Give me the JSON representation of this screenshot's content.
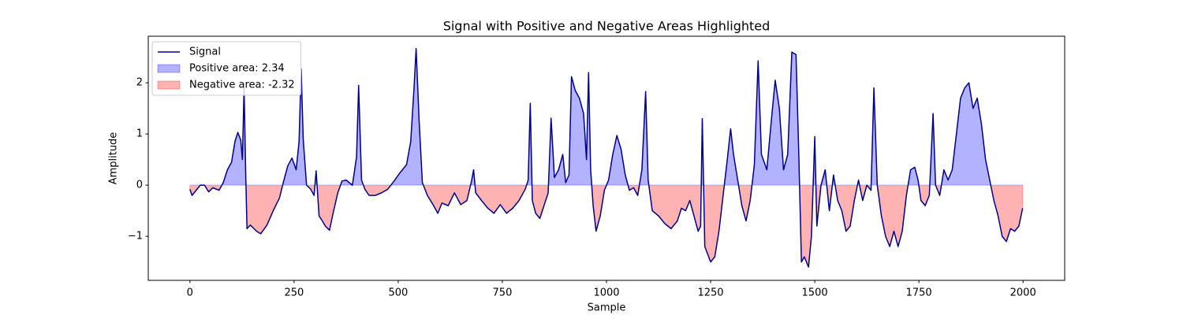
{
  "chart_data": {
    "type": "line",
    "title": "Signal with Positive and Negative Areas Highlighted",
    "x_label": "Sample",
    "y_label": "Amplitude",
    "xlim": [
      -100,
      2100
    ],
    "ylim": [
      -1.86,
      2.91
    ],
    "xticks": [
      0,
      250,
      500,
      750,
      1000,
      1250,
      1500,
      1750,
      2000
    ],
    "yticks": [
      {
        "value": -1,
        "label": "−1"
      },
      0,
      1,
      2
    ],
    "grid": false,
    "legend": "upper left",
    "fill_baseline": 0,
    "series": [
      {
        "name": "Signal",
        "color": "#00008b",
        "x": [
          0,
          5,
          15,
          25,
          35,
          45,
          55,
          70,
          80,
          90,
          100,
          108,
          115,
          122,
          126,
          130,
          134,
          137,
          145,
          160,
          170,
          185,
          200,
          215,
          225,
          235,
          245,
          255,
          262,
          267,
          272,
          280,
          290,
          298,
          303,
          310,
          318,
          325,
          335,
          345,
          355,
          365,
          375,
          390,
          400,
          405,
          412,
          420,
          430,
          445,
          460,
          475,
          490,
          505,
          520,
          530,
          538,
          543,
          550,
          558,
          570,
          585,
          595,
          605,
          620,
          635,
          650,
          665,
          676,
          681,
          686,
          700,
          715,
          730,
          745,
          760,
          775,
          790,
          805,
          812,
          817,
          822,
          830,
          840,
          850,
          860,
          867,
          875,
          885,
          895,
          902,
          910,
          916,
          925,
          935,
          945,
          952,
          957,
          962,
          968,
          975,
          985,
          995,
          1005,
          1015,
          1025,
          1035,
          1045,
          1055,
          1065,
          1075,
          1085,
          1094,
          1100,
          1110,
          1125,
          1140,
          1155,
          1170,
          1180,
          1190,
          1200,
          1210,
          1220,
          1226,
          1230,
          1236,
          1250,
          1260,
          1270,
          1280,
          1290,
          1298,
          1305,
          1315,
          1325,
          1335,
          1345,
          1355,
          1364,
          1372,
          1385,
          1395,
          1405,
          1415,
          1425,
          1435,
          1445,
          1455,
          1462,
          1468,
          1475,
          1485,
          1492,
          1500,
          1505,
          1515,
          1525,
          1535,
          1545,
          1555,
          1565,
          1575,
          1585,
          1595,
          1605,
          1615,
          1625,
          1635,
          1642,
          1650,
          1660,
          1670,
          1680,
          1690,
          1700,
          1710,
          1720,
          1730,
          1740,
          1748,
          1755,
          1765,
          1775,
          1784,
          1790,
          1800,
          1810,
          1820,
          1830,
          1840,
          1850,
          1860,
          1870,
          1880,
          1890,
          1900,
          1910,
          1920,
          1930,
          1940,
          1950,
          1960,
          1970,
          1980,
          1990,
          1999
        ],
        "values": [
          -0.08,
          -0.2,
          -0.1,
          0,
          0,
          -0.13,
          -0.05,
          -0.1,
          0.05,
          0.3,
          0.45,
          0.85,
          1.03,
          0.88,
          0.5,
          1.9,
          0.2,
          -0.85,
          -0.78,
          -0.9,
          -0.95,
          -0.78,
          -0.5,
          -0.25,
          0.08,
          0.38,
          0.53,
          0.3,
          0.85,
          2.27,
          0.9,
          0,
          -0.08,
          -0.2,
          0.28,
          -0.6,
          -0.7,
          -0.8,
          -0.88,
          -0.5,
          -0.15,
          0.08,
          0.1,
          0,
          0.55,
          1.95,
          0.1,
          -0.08,
          -0.2,
          -0.2,
          -0.15,
          -0.08,
          0.08,
          0.25,
          0.4,
          0.85,
          1.9,
          2.67,
          1.3,
          0.05,
          -0.2,
          -0.4,
          -0.55,
          -0.35,
          -0.4,
          -0.15,
          -0.38,
          -0.3,
          0.08,
          0.3,
          -0.15,
          -0.3,
          -0.45,
          -0.55,
          -0.38,
          -0.55,
          -0.45,
          -0.3,
          -0.08,
          0.1,
          1.6,
          -0.3,
          -0.55,
          -0.65,
          -0.4,
          -0.15,
          1.31,
          0.15,
          0.3,
          0.6,
          0.05,
          0.2,
          2.12,
          1.85,
          1.7,
          1.4,
          0.5,
          2.2,
          0.3,
          -0.4,
          -0.9,
          -0.6,
          -0.1,
          0.1,
          0.6,
          0.97,
          0.7,
          0.2,
          -0.1,
          -0.05,
          -0.2,
          0.3,
          1.83,
          0.1,
          -0.5,
          -0.6,
          -0.75,
          -0.85,
          -0.7,
          -0.45,
          -0.5,
          -0.3,
          -0.6,
          -0.9,
          -0.8,
          1.3,
          -1.2,
          -1.5,
          -1.4,
          -0.9,
          -0.2,
          0.5,
          1.1,
          0.6,
          0.1,
          -0.4,
          -0.7,
          -0.3,
          0.4,
          2.43,
          0.6,
          0.3,
          1.2,
          2.05,
          1.5,
          0.3,
          0.6,
          2.6,
          2.55,
          0.5,
          -1.5,
          -1.4,
          -1.6,
          -1.0,
          0.95,
          -0.8,
          0,
          0.3,
          -0.5,
          0.2,
          -0.3,
          -0.5,
          -0.9,
          -0.8,
          -0.3,
          0.1,
          -0.3,
          0,
          -0.1,
          1.9,
          0,
          -0.6,
          -1.0,
          -1.2,
          -0.9,
          -1.2,
          -0.9,
          -0.2,
          0.3,
          0.35,
          0.1,
          -0.3,
          -0.4,
          -0.2,
          1.4,
          0,
          -0.2,
          0.3,
          0.1,
          0.3,
          1.0,
          1.7,
          1.9,
          2.0,
          1.5,
          1.7,
          1.2,
          0.5,
          0.1,
          -0.3,
          -0.6,
          -1.0,
          -1.1,
          -0.85,
          -0.9,
          -0.8,
          -0.45
        ]
      }
    ],
    "areas": [
      {
        "name": "Positive area: 2.34",
        "color": "#0000ff",
        "alpha": 0.3,
        "where": "above"
      },
      {
        "name": "Negative area: -2.32",
        "color": "#ff0000",
        "alpha": 0.3,
        "where": "below"
      }
    ]
  }
}
